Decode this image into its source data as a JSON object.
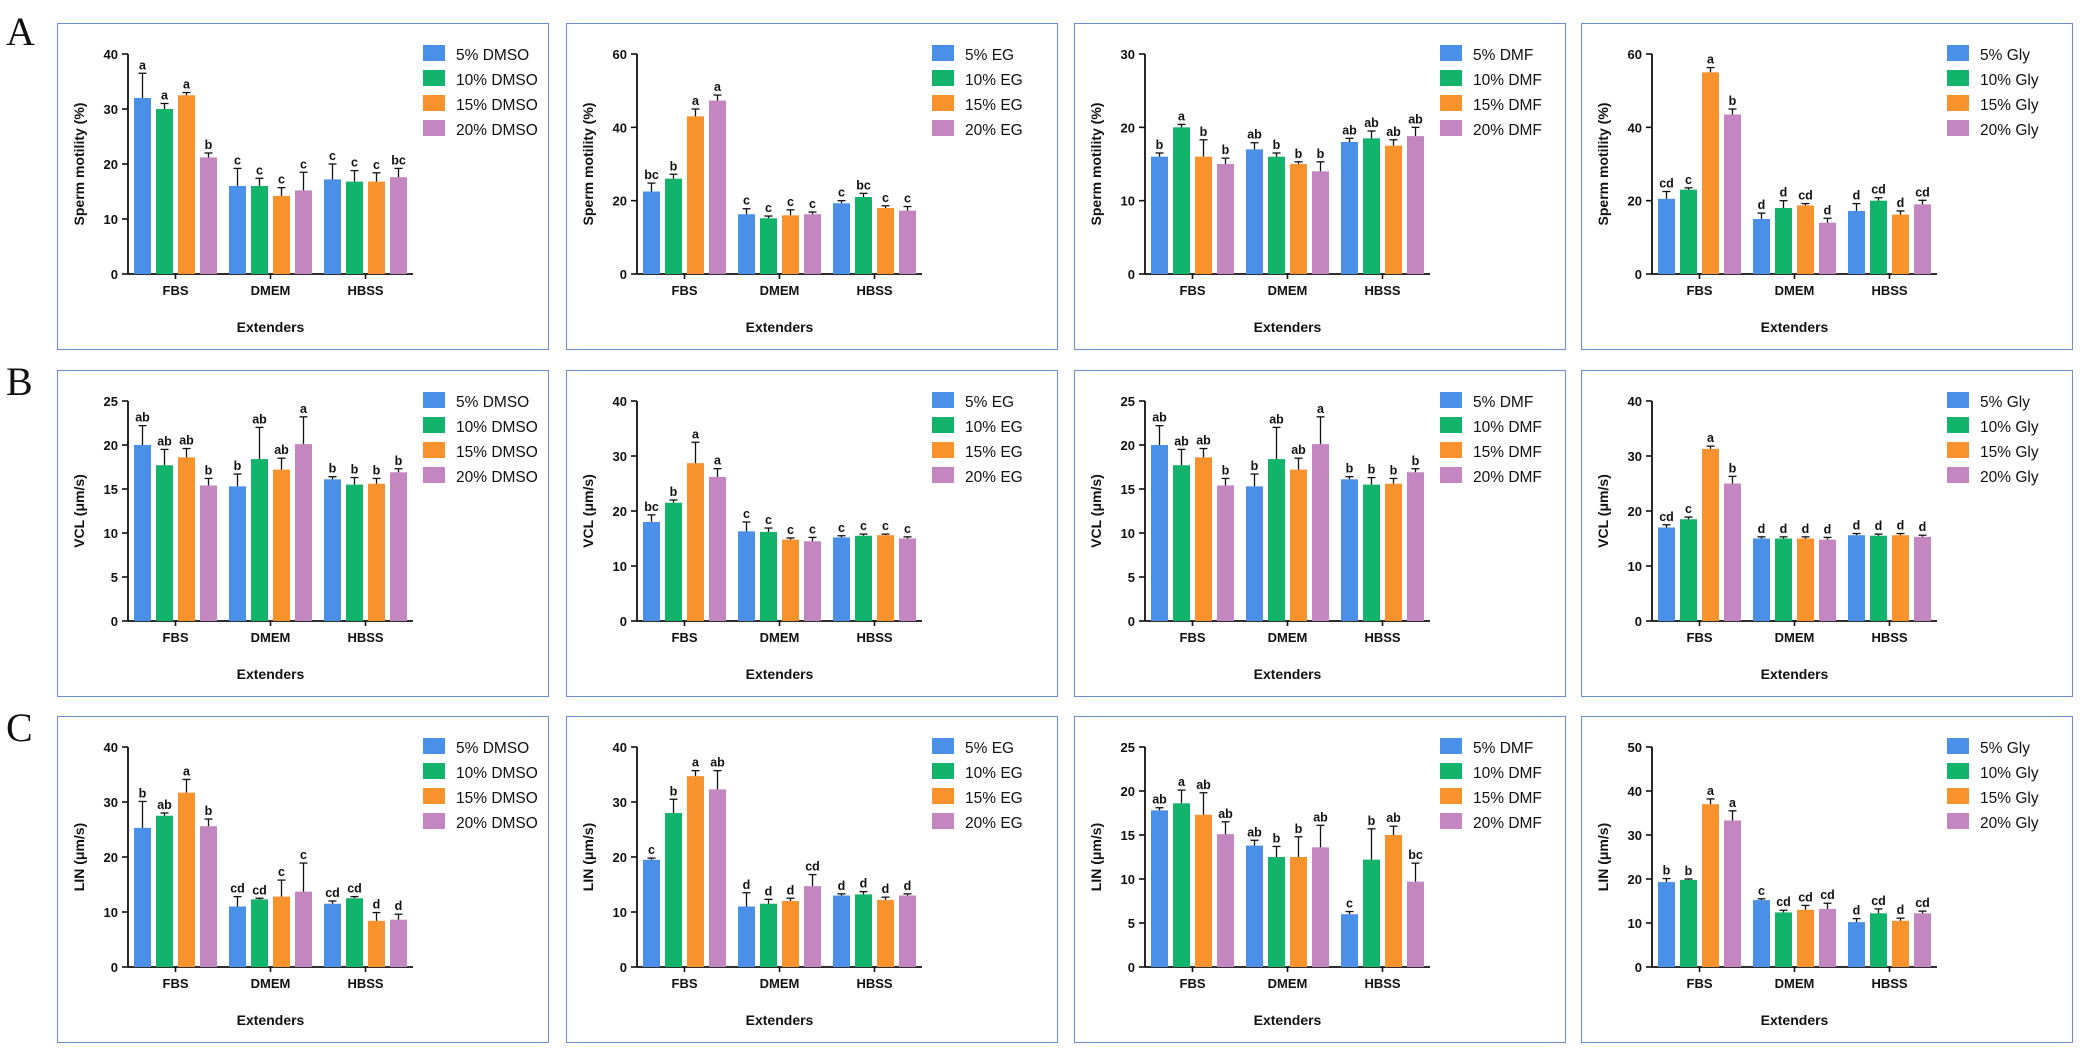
{
  "figure": {
    "row_labels": [
      "A",
      "B",
      "C"
    ],
    "colors": [
      "#4a90e8",
      "#12b36a",
      "#f7922c",
      "#c386c0"
    ]
  },
  "chart_data": [
    {
      "id": "A1",
      "type": "bar",
      "row": "A",
      "ylabel": "Sperm motility (%)",
      "xlabel": "Extenders",
      "ylim": [
        0,
        40
      ],
      "yticks": [
        0,
        10,
        20,
        30,
        40
      ],
      "categories": [
        "FBS",
        "DMEM",
        "HBSS"
      ],
      "series": [
        {
          "name": "5% DMSO",
          "values": [
            32,
            16,
            17.2
          ],
          "errors": [
            4.5,
            3.2,
            2.8
          ],
          "letters": [
            "a",
            "c",
            "c"
          ]
        },
        {
          "name": "10% DMSO",
          "values": [
            30,
            16,
            16.8
          ],
          "errors": [
            1,
            1.4,
            2
          ],
          "letters": [
            "a",
            "c",
            "c"
          ]
        },
        {
          "name": "15% DMSO",
          "values": [
            32.5,
            14.2,
            16.8
          ],
          "errors": [
            0.5,
            1.5,
            1.6
          ],
          "letters": [
            "a",
            "c",
            "c"
          ]
        },
        {
          "name": "20% DMSO",
          "values": [
            21.2,
            15.2,
            17.6
          ],
          "errors": [
            0.8,
            3.3,
            1.6
          ],
          "letters": [
            "b",
            "c",
            "bc"
          ]
        }
      ]
    },
    {
      "id": "A2",
      "type": "bar",
      "row": "A",
      "ylabel": "Sperm motility (%)",
      "xlabel": "Extenders",
      "ylim": [
        0,
        60
      ],
      "yticks": [
        0,
        20,
        40,
        60
      ],
      "categories": [
        "FBS",
        "DMEM",
        "HBSS"
      ],
      "series": [
        {
          "name": "5% EG",
          "values": [
            22.5,
            16.3,
            19.3
          ],
          "errors": [
            2.3,
            1.5,
            0.7
          ],
          "letters": [
            "bc",
            "c",
            "c"
          ]
        },
        {
          "name": "10% EG",
          "values": [
            26,
            15.2,
            21
          ],
          "errors": [
            1.2,
            0.6,
            1
          ],
          "letters": [
            "b",
            "c",
            "bc"
          ]
        },
        {
          "name": "15% EG",
          "values": [
            43,
            16,
            18
          ],
          "errors": [
            2,
            1.5,
            0.6
          ],
          "letters": [
            "a",
            "c",
            "c"
          ]
        },
        {
          "name": "20% EG",
          "values": [
            47.3,
            16.3,
            17.3
          ],
          "errors": [
            1.5,
            0.6,
            1.1
          ],
          "letters": [
            "a",
            "c",
            "c"
          ]
        }
      ]
    },
    {
      "id": "A3",
      "type": "bar",
      "row": "A",
      "ylabel": "Sperm motility (%)",
      "xlabel": "Extenders",
      "ylim": [
        0,
        30
      ],
      "yticks": [
        0,
        10,
        20,
        30
      ],
      "categories": [
        "FBS",
        "DMEM",
        "HBSS"
      ],
      "series": [
        {
          "name": "5% DMF",
          "values": [
            16,
            17,
            18
          ],
          "errors": [
            0.5,
            0.9,
            0.5
          ],
          "letters": [
            "b",
            "ab",
            "ab"
          ]
        },
        {
          "name": "10% DMF",
          "values": [
            20,
            16,
            18.5
          ],
          "errors": [
            0.4,
            0.5,
            1
          ],
          "letters": [
            "a",
            "b",
            "ab"
          ]
        },
        {
          "name": "15% DMF",
          "values": [
            16,
            15,
            17.5
          ],
          "errors": [
            2.3,
            0.3,
            0.8
          ],
          "letters": [
            "b",
            "b",
            "ab"
          ]
        },
        {
          "name": "20% DMF",
          "values": [
            15,
            14,
            18.8
          ],
          "errors": [
            0.8,
            1.3,
            1.2
          ],
          "letters": [
            "b",
            "b",
            "ab"
          ]
        }
      ]
    },
    {
      "id": "A4",
      "type": "bar",
      "row": "A",
      "ylabel": "Sperm motility (%)",
      "xlabel": "Extenders",
      "ylim": [
        0,
        60
      ],
      "yticks": [
        0,
        20,
        40,
        60
      ],
      "categories": [
        "FBS",
        "DMEM",
        "HBSS"
      ],
      "series": [
        {
          "name": "5% Gly",
          "values": [
            20.5,
            15,
            17.2
          ],
          "errors": [
            2,
            1.6,
            2
          ],
          "letters": [
            "cd",
            "d",
            "d"
          ]
        },
        {
          "name": "10% Gly",
          "values": [
            23,
            18,
            20
          ],
          "errors": [
            0.5,
            2,
            0.8
          ],
          "letters": [
            "c",
            "d",
            "cd"
          ]
        },
        {
          "name": "15% Gly",
          "values": [
            55,
            18.7,
            16.2
          ],
          "errors": [
            1.3,
            0.5,
            1
          ],
          "letters": [
            "a",
            "cd",
            "d"
          ]
        },
        {
          "name": "20% Gly",
          "values": [
            43.5,
            14,
            19
          ],
          "errors": [
            1.5,
            1.2,
            1.1
          ],
          "letters": [
            "b",
            "d",
            "cd"
          ]
        }
      ]
    },
    {
      "id": "B1",
      "type": "bar",
      "row": "B",
      "ylabel": "VCL (μm/s)",
      "xlabel": "Extenders",
      "ylim": [
        0,
        25
      ],
      "yticks": [
        0,
        5,
        10,
        15,
        20,
        25
      ],
      "categories": [
        "FBS",
        "DMEM",
        "HBSS"
      ],
      "series": [
        {
          "name": "5% DMSO",
          "values": [
            20,
            15.3,
            16.1
          ],
          "errors": [
            2.2,
            1.4,
            0.3
          ],
          "letters": [
            "ab",
            "b",
            "b"
          ]
        },
        {
          "name": "10% DMSO",
          "values": [
            17.7,
            18.4,
            15.5
          ],
          "errors": [
            1.8,
            3.6,
            0.8
          ],
          "letters": [
            "ab",
            "ab",
            "b"
          ]
        },
        {
          "name": "15% DMSO",
          "values": [
            18.6,
            17.2,
            15.6
          ],
          "errors": [
            1,
            1.3,
            0.6
          ],
          "letters": [
            "ab",
            "ab",
            "b"
          ]
        },
        {
          "name": "20% DMSO",
          "values": [
            15.4,
            20.1,
            16.9
          ],
          "errors": [
            0.8,
            3.1,
            0.4
          ],
          "letters": [
            "b",
            "a",
            "b"
          ]
        }
      ]
    },
    {
      "id": "B2",
      "type": "bar",
      "row": "B",
      "ylabel": "VCL (μm/s)",
      "xlabel": "Extenders",
      "ylim": [
        0,
        40
      ],
      "yticks": [
        0,
        10,
        20,
        30,
        40
      ],
      "categories": [
        "FBS",
        "DMEM",
        "HBSS"
      ],
      "series": [
        {
          "name": "5% EG",
          "values": [
            18,
            16.3,
            15.2
          ],
          "errors": [
            1.3,
            1.7,
            0.3
          ],
          "letters": [
            "bc",
            "c",
            "c"
          ]
        },
        {
          "name": "10% EG",
          "values": [
            21.5,
            16.2,
            15.5
          ],
          "errors": [
            0.5,
            0.7,
            0.3
          ],
          "letters": [
            "b",
            "c",
            "c"
          ]
        },
        {
          "name": "15% EG",
          "values": [
            28.7,
            14.8,
            15.6
          ],
          "errors": [
            3.8,
            0.3,
            0.2
          ],
          "letters": [
            "a",
            "c",
            "c"
          ]
        },
        {
          "name": "20% EG",
          "values": [
            26.2,
            14.5,
            15
          ],
          "errors": [
            1.5,
            0.7,
            0.3
          ],
          "letters": [
            "a",
            "c",
            "c"
          ]
        }
      ]
    },
    {
      "id": "B3",
      "type": "bar",
      "row": "B",
      "ylabel": "VCL (μm/s)",
      "xlabel": "Extenders",
      "ylim": [
        0,
        25
      ],
      "yticks": [
        0,
        5,
        10,
        15,
        20,
        25
      ],
      "categories": [
        "FBS",
        "DMEM",
        "HBSS"
      ],
      "series": [
        {
          "name": "5% DMF",
          "values": [
            20,
            15.3,
            16.1
          ],
          "errors": [
            2.2,
            1.4,
            0.3
          ],
          "letters": [
            "ab",
            "b",
            "b"
          ]
        },
        {
          "name": "10% DMF",
          "values": [
            17.7,
            18.4,
            15.5
          ],
          "errors": [
            1.8,
            3.6,
            0.8
          ],
          "letters": [
            "ab",
            "ab",
            "b"
          ]
        },
        {
          "name": "15% DMF",
          "values": [
            18.6,
            17.2,
            15.6
          ],
          "errors": [
            1,
            1.3,
            0.6
          ],
          "letters": [
            "ab",
            "ab",
            "b"
          ]
        },
        {
          "name": "20% DMF",
          "values": [
            15.4,
            20.1,
            16.9
          ],
          "errors": [
            0.8,
            3.1,
            0.4
          ],
          "letters": [
            "b",
            "a",
            "b"
          ]
        }
      ]
    },
    {
      "id": "B4",
      "type": "bar",
      "row": "B",
      "ylabel": "VCL (μm/s)",
      "xlabel": "Extenders",
      "ylim": [
        0,
        40
      ],
      "yticks": [
        0,
        10,
        20,
        30,
        40
      ],
      "categories": [
        "FBS",
        "DMEM",
        "HBSS"
      ],
      "series": [
        {
          "name": "5% Gly",
          "values": [
            17,
            15,
            15.6
          ],
          "errors": [
            0.5,
            0.3,
            0.3
          ],
          "letters": [
            "cd",
            "d",
            "d"
          ]
        },
        {
          "name": "10% Gly",
          "values": [
            18.5,
            15,
            15.5
          ],
          "errors": [
            0.4,
            0.3,
            0.3
          ],
          "letters": [
            "c",
            "d",
            "d"
          ]
        },
        {
          "name": "15% Gly",
          "values": [
            31.3,
            15,
            15.6
          ],
          "errors": [
            0.5,
            0.3,
            0.3
          ],
          "letters": [
            "a",
            "d",
            "d"
          ]
        },
        {
          "name": "20% Gly",
          "values": [
            25,
            14.8,
            15.3
          ],
          "errors": [
            1.3,
            0.4,
            0.3
          ],
          "letters": [
            "b",
            "d",
            "d"
          ]
        }
      ]
    },
    {
      "id": "C1",
      "type": "bar",
      "row": "C",
      "ylabel": "LIN (μm/s)",
      "xlabel": "Extenders",
      "ylim": [
        0,
        40
      ],
      "yticks": [
        0,
        10,
        20,
        30,
        40
      ],
      "categories": [
        "FBS",
        "DMEM",
        "HBSS"
      ],
      "series": [
        {
          "name": "5% DMSO",
          "values": [
            25.3,
            11,
            11.5
          ],
          "errors": [
            4.8,
            1.8,
            0.5
          ],
          "letters": [
            "b",
            "cd",
            "cd"
          ]
        },
        {
          "name": "10% DMSO",
          "values": [
            27.5,
            12.3,
            12.5
          ],
          "errors": [
            0.5,
            0.2,
            0.3
          ],
          "letters": [
            "ab",
            "cd",
            "cd"
          ]
        },
        {
          "name": "15% DMSO",
          "values": [
            31.7,
            12.8,
            8.4
          ],
          "errors": [
            2.4,
            3,
            1.5
          ],
          "letters": [
            "a",
            "c",
            "d"
          ]
        },
        {
          "name": "20% DMSO",
          "values": [
            25.6,
            13.7,
            8.6
          ],
          "errors": [
            1.3,
            5.2,
            1
          ],
          "letters": [
            "b",
            "c",
            "d"
          ]
        }
      ]
    },
    {
      "id": "C2",
      "type": "bar",
      "row": "C",
      "ylabel": "LIN (μm/s)",
      "xlabel": "Extenders",
      "ylim": [
        0,
        40
      ],
      "yticks": [
        0,
        10,
        20,
        30,
        40
      ],
      "categories": [
        "FBS",
        "DMEM",
        "HBSS"
      ],
      "series": [
        {
          "name": "5% EG",
          "values": [
            19.5,
            11,
            13
          ],
          "errors": [
            0.3,
            2.5,
            0.3
          ],
          "letters": [
            "c",
            "d",
            "d"
          ]
        },
        {
          "name": "10% EG",
          "values": [
            28,
            11.5,
            13.2
          ],
          "errors": [
            2.5,
            0.8,
            0.5
          ],
          "letters": [
            "b",
            "d",
            "d"
          ]
        },
        {
          "name": "15% EG",
          "values": [
            34.7,
            12,
            12.2
          ],
          "errors": [
            1,
            0.5,
            0.5
          ],
          "letters": [
            "a",
            "d",
            "d"
          ]
        },
        {
          "name": "20% EG",
          "values": [
            32.3,
            14.7,
            13
          ],
          "errors": [
            3.4,
            2.1,
            0.3
          ],
          "letters": [
            "ab",
            "cd",
            "d"
          ]
        }
      ]
    },
    {
      "id": "C3",
      "type": "bar",
      "row": "C",
      "ylabel": "LIN (μm/s)",
      "xlabel": "Extenders",
      "ylim": [
        0,
        25
      ],
      "yticks": [
        0,
        5,
        10,
        15,
        20,
        25
      ],
      "categories": [
        "FBS",
        "DMEM",
        "HBSS"
      ],
      "series": [
        {
          "name": "5% DMF",
          "values": [
            17.8,
            13.8,
            6
          ],
          "errors": [
            0.3,
            0.6,
            0.3
          ],
          "letters": [
            "ab",
            "ab",
            "c"
          ]
        },
        {
          "name": "10% DMF",
          "values": [
            18.6,
            12.5,
            12.2
          ],
          "errors": [
            1.5,
            1.2,
            3.5
          ],
          "letters": [
            "a",
            "b",
            "b"
          ]
        },
        {
          "name": "15% DMF",
          "values": [
            17.3,
            12.5,
            15
          ],
          "errors": [
            2.5,
            2.3,
            1
          ],
          "letters": [
            "ab",
            "b",
            "ab"
          ]
        },
        {
          "name": "20% DMF",
          "values": [
            15.1,
            13.6,
            9.7
          ],
          "errors": [
            1.4,
            2.5,
            2.1
          ],
          "letters": [
            "ab",
            "ab",
            "bc"
          ]
        }
      ]
    },
    {
      "id": "C4",
      "type": "bar",
      "row": "C",
      "ylabel": "LIN (μm/s)",
      "xlabel": "Extenders",
      "ylim": [
        0,
        50
      ],
      "yticks": [
        0,
        10,
        20,
        30,
        40,
        50
      ],
      "categories": [
        "FBS",
        "DMEM",
        "HBSS"
      ],
      "series": [
        {
          "name": "5% Gly",
          "values": [
            19.3,
            15.2,
            10.2
          ],
          "errors": [
            0.8,
            0.3,
            0.8
          ],
          "letters": [
            "b",
            "c",
            "d"
          ]
        },
        {
          "name": "10% Gly",
          "values": [
            19.8,
            12.4,
            12.2
          ],
          "errors": [
            0.2,
            0.5,
            1
          ],
          "letters": [
            "b",
            "cd",
            "cd"
          ]
        },
        {
          "name": "15% Gly",
          "values": [
            37,
            13,
            10.5
          ],
          "errors": [
            1.2,
            1,
            0.6
          ],
          "letters": [
            "a",
            "cd",
            "d"
          ]
        },
        {
          "name": "20% Gly",
          "values": [
            33.3,
            13.2,
            12.2
          ],
          "errors": [
            2.2,
            1.3,
            0.5
          ],
          "letters": [
            "a",
            "cd",
            "cd"
          ]
        }
      ]
    }
  ]
}
